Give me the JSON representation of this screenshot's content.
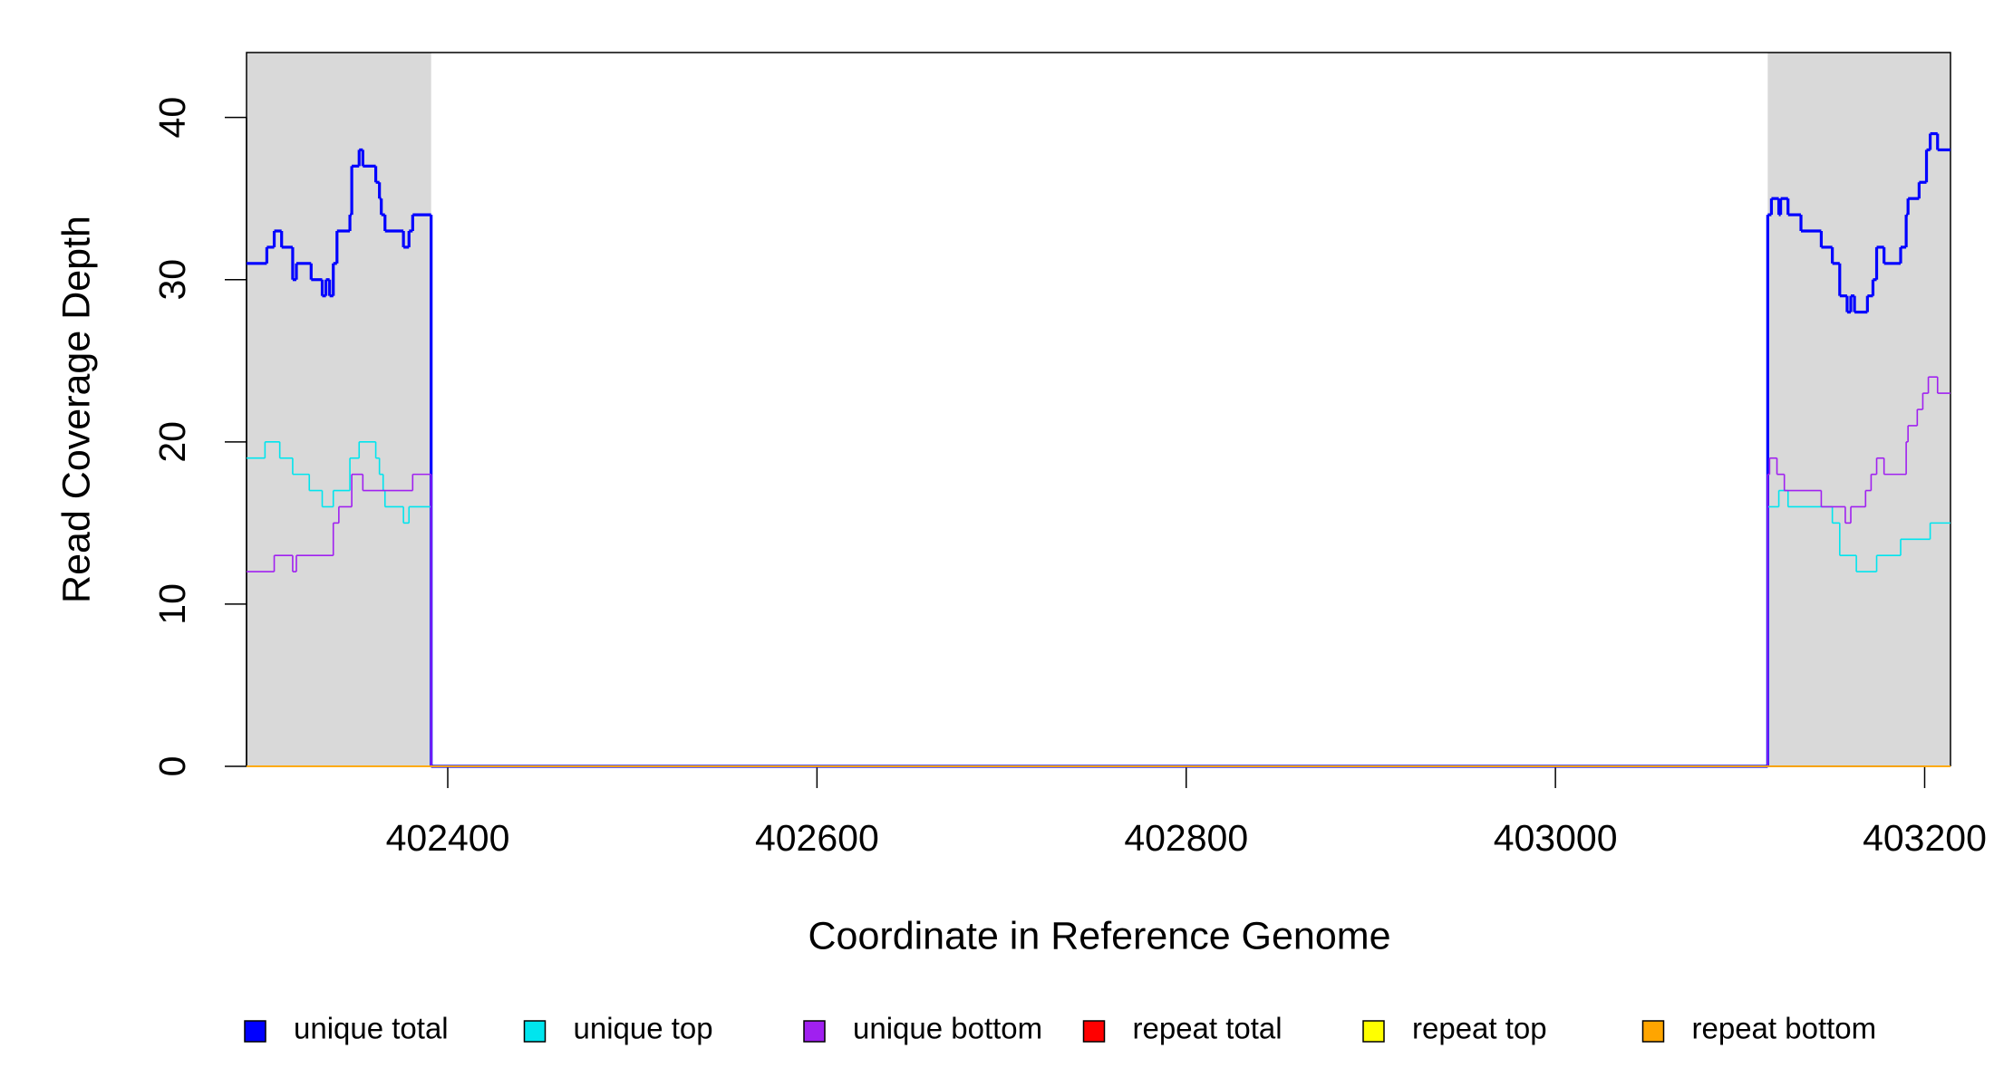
{
  "chart_data": {
    "type": "step",
    "xlabel": "Coordinate in Reference Genome",
    "ylabel": "Read Coverage Depth",
    "xlim": [
      402291,
      403214
    ],
    "ylim": [
      0,
      44
    ],
    "xticks": [
      402400,
      402600,
      402800,
      403000,
      403200
    ],
    "yticks": [
      0,
      10,
      20,
      30,
      40
    ],
    "grid": false,
    "legend": "bottom",
    "highlight_regions": [
      {
        "xlim": [
          402291,
          402391
        ],
        "color": "#d9d9d9"
      },
      {
        "xlim": [
          403115,
          403214
        ],
        "color": "#d9d9d9"
      }
    ],
    "series": [
      {
        "name": "unique total",
        "color": "#0000ff",
        "linewidth": 3.2,
        "x": [
          402291,
          402302,
          402306,
          402310,
          402316,
          402318,
          402326,
          402332,
          402334,
          402336,
          402338,
          402340,
          402347,
          402348,
          402352,
          402354,
          402361,
          402363,
          402364,
          402366,
          402376,
          402379,
          402381,
          402391,
          403115,
          403117,
          403121,
          403122,
          403126,
          403133,
          403144,
          403150,
          403154,
          403158,
          403160,
          403162,
          403169,
          403172,
          403174,
          403178,
          403187,
          403190,
          403191,
          403197,
          403201,
          403203,
          403207,
          403214
        ],
        "values": [
          31,
          32,
          33,
          32,
          30,
          31,
          30,
          29,
          30,
          29,
          31,
          33,
          34,
          37,
          38,
          37,
          36,
          35,
          34,
          33,
          32,
          33,
          34,
          0,
          34,
          35,
          34,
          35,
          34,
          33,
          32,
          31,
          29,
          28,
          29,
          28,
          29,
          30,
          32,
          31,
          32,
          34,
          35,
          36,
          38,
          39,
          38,
          38
        ]
      },
      {
        "name": "unique top",
        "color": "#00e5ee",
        "linewidth": 1.6,
        "x": [
          402291,
          402301,
          402309,
          402316,
          402325,
          402332,
          402338,
          402347,
          402352,
          402361,
          402363,
          402365,
          402366,
          402376,
          402379,
          402391,
          403115,
          403121,
          403126,
          403150,
          403154,
          403163,
          403174,
          403187,
          403203,
          403214
        ],
        "values": [
          19,
          20,
          19,
          18,
          17,
          16,
          17,
          19,
          20,
          19,
          18,
          17,
          16,
          15,
          16,
          0,
          16,
          17,
          16,
          15,
          13,
          12,
          13,
          14,
          15,
          15
        ]
      },
      {
        "name": "unique bottom",
        "color": "#a020f0",
        "linewidth": 1.6,
        "x": [
          402291,
          402306,
          402316,
          402318,
          402338,
          402341,
          402348,
          402354,
          402381,
          402391,
          403115,
          403116,
          403120,
          403124,
          403144,
          403157,
          403160,
          403168,
          403171,
          403174,
          403178,
          403190,
          403191,
          403196,
          403199,
          403202,
          403207,
          403214
        ],
        "values": [
          12,
          13,
          12,
          13,
          15,
          16,
          18,
          17,
          18,
          0,
          18,
          19,
          18,
          17,
          16,
          15,
          16,
          17,
          18,
          19,
          18,
          20,
          21,
          22,
          23,
          24,
          23,
          23
        ]
      },
      {
        "name": "repeat total",
        "color": "#ff0000",
        "linewidth": 1.6,
        "x": [
          402291,
          403214
        ],
        "values": [
          0,
          0
        ]
      },
      {
        "name": "repeat top",
        "color": "#ffff00",
        "linewidth": 1.6,
        "x": [
          402291,
          403214
        ],
        "values": [
          0,
          0
        ]
      },
      {
        "name": "repeat bottom",
        "color": "#ffa500",
        "linewidth": 1.6,
        "x": [
          402291,
          403214
        ],
        "values": [
          0,
          0
        ]
      }
    ]
  }
}
